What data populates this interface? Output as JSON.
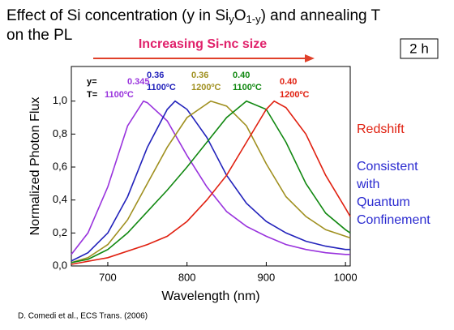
{
  "slide": {
    "title": [
      "Effect of Si concentration (y in Si",
      "y",
      "O",
      "1-y",
      ") and annealing T",
      "on the PL"
    ],
    "arrow_label": "Increasing Si-nc size",
    "time_box": "2 h",
    "redshift": "Redshift",
    "confinement": [
      "Consistent",
      "with",
      "Quantum",
      "Confinement"
    ],
    "citation": "D. Comedi et al., ECS Trans. (2006)"
  },
  "chart_data": {
    "type": "line",
    "x_label": "Wavelength (nm)",
    "y_label": "Normalized Photon Flux",
    "xlim": [
      654,
      1006
    ],
    "xticks": [
      700,
      800,
      900,
      1000
    ],
    "ylim": [
      0,
      1.21
    ],
    "yticks": [
      {
        "value": 0,
        "label": "0,0"
      },
      {
        "value": 0.2,
        "label": "0,2"
      },
      {
        "value": 0.4,
        "label": "0,4"
      },
      {
        "value": 0.6,
        "label": "0,6"
      },
      {
        "value": 0.8,
        "label": "0,8"
      },
      {
        "value": 1.0,
        "label": "1,0"
      }
    ],
    "annotations": [
      "y=",
      "T="
    ],
    "series": [
      {
        "name": "0.345",
        "temperature": "1100ºC",
        "color": "#9933dd",
        "x": [
          654,
          675,
          700,
          725,
          745,
          750,
          775,
          800,
          825,
          850,
          875,
          900,
          925,
          950,
          975,
          1000,
          1006
        ],
        "values": [
          0.07,
          0.2,
          0.48,
          0.85,
          1.0,
          0.99,
          0.88,
          0.67,
          0.48,
          0.33,
          0.24,
          0.18,
          0.13,
          0.1,
          0.08,
          0.07,
          0.07
        ]
      },
      {
        "name": "0.36",
        "temperature": "1100ºC",
        "color": "#2222bb",
        "x": [
          654,
          675,
          700,
          725,
          750,
          775,
          785,
          800,
          825,
          850,
          875,
          900,
          925,
          950,
          975,
          1000,
          1006
        ],
        "values": [
          0.03,
          0.08,
          0.2,
          0.42,
          0.72,
          0.95,
          1.0,
          0.95,
          0.78,
          0.55,
          0.38,
          0.27,
          0.2,
          0.15,
          0.12,
          0.1,
          0.1
        ]
      },
      {
        "name": "0.36",
        "temperature": "1200ºC",
        "color": "#a09020",
        "x": [
          654,
          675,
          700,
          725,
          750,
          775,
          800,
          830,
          850,
          875,
          900,
          925,
          950,
          975,
          1000,
          1006
        ],
        "values": [
          0.02,
          0.05,
          0.13,
          0.28,
          0.5,
          0.72,
          0.9,
          1.0,
          0.97,
          0.85,
          0.62,
          0.42,
          0.3,
          0.22,
          0.18,
          0.17
        ]
      },
      {
        "name": "0.40",
        "temperature": "1100ºC",
        "color": "#118811",
        "x": [
          654,
          675,
          700,
          725,
          750,
          775,
          800,
          825,
          850,
          875,
          900,
          925,
          950,
          975,
          1000,
          1006
        ],
        "values": [
          0.02,
          0.04,
          0.1,
          0.2,
          0.33,
          0.46,
          0.6,
          0.75,
          0.9,
          1.0,
          0.95,
          0.75,
          0.5,
          0.32,
          0.22,
          0.2
        ]
      },
      {
        "name": "0.40",
        "temperature": "1200ºC",
        "color": "#e02010",
        "x": [
          654,
          700,
          750,
          775,
          800,
          825,
          850,
          875,
          900,
          910,
          925,
          950,
          975,
          1000,
          1006
        ],
        "values": [
          0.01,
          0.05,
          0.13,
          0.18,
          0.27,
          0.4,
          0.55,
          0.75,
          0.95,
          1.0,
          0.96,
          0.8,
          0.55,
          0.35,
          0.3
        ]
      }
    ]
  }
}
